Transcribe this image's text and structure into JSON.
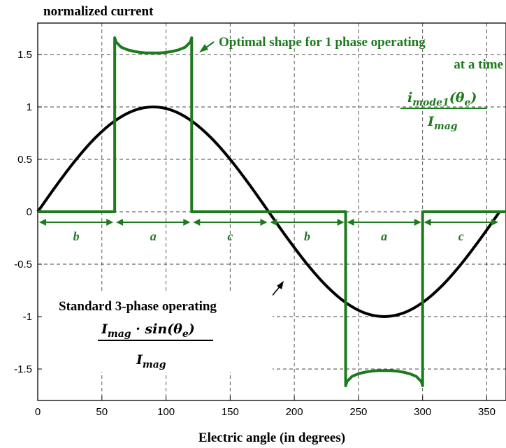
{
  "chart_data": {
    "type": "line",
    "ylabel": "normalized current",
    "xlabel": "Electric angle (in degrees)",
    "xlim": [
      0,
      365
    ],
    "ylim": [
      -1.8,
      1.8
    ],
    "x_ticks": [
      0,
      50,
      100,
      150,
      200,
      250,
      300,
      350
    ],
    "y_ticks": [
      1.5,
      1,
      0.5,
      0,
      -0.5,
      -1,
      -1.5
    ],
    "x_tick_labels": [
      "0",
      "50",
      "100",
      "150",
      "200",
      "250",
      "300",
      "350"
    ],
    "y_tick_labels": [
      "1.5",
      "1",
      "0.5",
      "0",
      "-0.5",
      "-1",
      "-1.5"
    ],
    "grid": true,
    "series": [
      {
        "key": "sine",
        "color": "#000000",
        "x": [
          0,
          15,
          30,
          45,
          60,
          75,
          90,
          105,
          120,
          135,
          150,
          165,
          180,
          195,
          210,
          225,
          240,
          255,
          270,
          285,
          300,
          315,
          330,
          345,
          360
        ],
        "y": [
          0,
          0.259,
          0.5,
          0.707,
          0.866,
          0.966,
          1,
          0.966,
          0.866,
          0.707,
          0.5,
          0.259,
          0,
          -0.259,
          -0.5,
          -0.707,
          -0.866,
          -0.966,
          -1,
          -0.966,
          -0.866,
          -0.707,
          -0.5,
          -0.259,
          0
        ]
      },
      {
        "key": "mode1",
        "color": "#1e7a1e",
        "x": [
          0,
          60,
          60,
          61,
          65,
          70,
          75,
          80,
          85,
          90,
          95,
          100,
          105,
          110,
          115,
          119,
          120,
          120,
          240,
          240,
          241,
          245,
          250,
          255,
          260,
          265,
          270,
          275,
          280,
          285,
          290,
          295,
          299,
          300,
          300,
          365
        ],
        "y": [
          0,
          0,
          1.66,
          1.62,
          1.57,
          1.545,
          1.53,
          1.52,
          1.515,
          1.515,
          1.515,
          1.52,
          1.53,
          1.545,
          1.57,
          1.62,
          1.66,
          0,
          0,
          -1.66,
          -1.62,
          -1.57,
          -1.545,
          -1.53,
          -1.52,
          -1.515,
          -1.515,
          -1.515,
          -1.52,
          -1.53,
          -1.545,
          -1.57,
          -1.62,
          -1.66,
          0,
          0
        ]
      }
    ],
    "annotations": {
      "green_label_line1": "Optimal shape for 1 phase operating",
      "green_label_line2": "at a time",
      "green_formula_num": "i",
      "green_formula_num_sub": "mode1",
      "green_formula_num_rest": "(θ",
      "green_formula_num_rest_sub": "e",
      "green_formula_num_close": ")",
      "green_formula_den": "I",
      "green_formula_den_sub": "mag",
      "black_label": "Standard 3-phase operating",
      "black_formula_num_a": "I",
      "black_formula_num_a_sub": "mag",
      "black_formula_num_b": " · sin(θ",
      "black_formula_num_b_sub": "e",
      "black_formula_num_close": ")",
      "black_formula_den": "I",
      "black_formula_den_sub": "mag"
    },
    "segments": [
      {
        "label": "b",
        "from": 0,
        "to": 60
      },
      {
        "label": "a",
        "from": 60,
        "to": 120
      },
      {
        "label": "c",
        "from": 120,
        "to": 180
      },
      {
        "label": "b",
        "from": 180,
        "to": 240
      },
      {
        "label": "a",
        "from": 240,
        "to": 300
      },
      {
        "label": "c",
        "from": 300,
        "to": 360
      }
    ],
    "segment_y": -0.1
  }
}
